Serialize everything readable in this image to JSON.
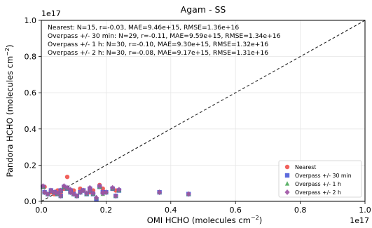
{
  "chart_data": {
    "type": "scatter",
    "title": "Agam - SS",
    "xlabel": "OMI HCHO (molecules cm",
    "xlabel_sup": "−2",
    "xlabel_end": ")",
    "ylabel": "Pandora HCHO (molecules cm",
    "ylabel_sup": "−2",
    "ylabel_end": ")",
    "x_offset_text": "1e17",
    "y_offset_text": "1e17",
    "xlim": [
      0.0,
      1.0
    ],
    "ylim": [
      0.0,
      1.0
    ],
    "x_ticks": [
      "0.0",
      "0.2",
      "0.4",
      "0.6",
      "0.8",
      "1.0"
    ],
    "y_ticks": [
      "0.0",
      "0.2",
      "0.4",
      "0.6",
      "0.8",
      "1.0"
    ],
    "grid": true,
    "one_to_one_line": true,
    "stats": [
      "Nearest: N=15, r=-0.03, MAE=9.46e+15, RMSE=1.36e+16",
      "Overpass +/- 30 min: N=29, r=-0.11, MAE=9.59e+15, RMSE=1.34e+16",
      "Overpass +/- 1 h: N=30, r=-0.10, MAE=9.30e+15, RMSE=1.32e+16",
      "Overpass +/- 2 h: N=30, r=-0.08, MAE=9.17e+15, RMSE=1.31e+16"
    ],
    "legend_position": "bottom-right",
    "series": [
      {
        "name": "Nearest",
        "color": "#f0504a",
        "marker": "circle",
        "x": [
          0.01,
          0.05,
          0.07,
          0.08,
          0.12,
          0.15,
          0.18,
          0.22,
          0.04,
          0.1,
          0.03,
          0.16,
          0.19,
          0.06,
          0.23
        ],
        "y": [
          0.08,
          0.06,
          0.07,
          0.135,
          0.07,
          0.05,
          0.09,
          0.07,
          0.04,
          0.06,
          0.05,
          0.06,
          0.07,
          0.05,
          0.06
        ]
      },
      {
        "name": "Overpass +/- 30 min",
        "color": "#4a5ad8",
        "marker": "square",
        "x": [
          0.005,
          0.01,
          0.03,
          0.05,
          0.06,
          0.07,
          0.09,
          0.1,
          0.12,
          0.14,
          0.15,
          0.17,
          0.18,
          0.19,
          0.22,
          0.23,
          0.24,
          0.02,
          0.04,
          0.08,
          0.11,
          0.13,
          0.16,
          0.2,
          0.06,
          0.09,
          0.15,
          0.365,
          0.455
        ],
        "y": [
          0.08,
          0.05,
          0.06,
          0.04,
          0.06,
          0.08,
          0.06,
          0.04,
          0.05,
          0.04,
          0.06,
          0.01,
          0.08,
          0.05,
          0.07,
          0.03,
          0.06,
          0.04,
          0.05,
          0.07,
          0.03,
          0.06,
          0.04,
          0.05,
          0.03,
          0.05,
          0.07,
          0.05,
          0.04
        ]
      },
      {
        "name": "Overpass +/- 1 h",
        "color": "#4caa5a",
        "marker": "triangle",
        "x": [
          0.005,
          0.01,
          0.03,
          0.05,
          0.06,
          0.07,
          0.09,
          0.1,
          0.12,
          0.14,
          0.15,
          0.17,
          0.18,
          0.19,
          0.22,
          0.23,
          0.24,
          0.02,
          0.04,
          0.08,
          0.11,
          0.13,
          0.16,
          0.2,
          0.06,
          0.09,
          0.15,
          0.365,
          0.455,
          0.19
        ],
        "y": [
          0.08,
          0.05,
          0.06,
          0.04,
          0.06,
          0.08,
          0.06,
          0.04,
          0.05,
          0.04,
          0.06,
          0.02,
          0.08,
          0.05,
          0.07,
          0.03,
          0.06,
          0.04,
          0.05,
          0.07,
          0.03,
          0.06,
          0.04,
          0.05,
          0.03,
          0.05,
          0.07,
          0.05,
          0.04,
          0.04
        ]
      },
      {
        "name": "Overpass +/- 2 h",
        "color": "#9e52a4",
        "marker": "diamond",
        "x": [
          0.005,
          0.01,
          0.03,
          0.05,
          0.06,
          0.07,
          0.09,
          0.1,
          0.12,
          0.14,
          0.15,
          0.17,
          0.18,
          0.19,
          0.22,
          0.23,
          0.24,
          0.02,
          0.04,
          0.08,
          0.11,
          0.13,
          0.16,
          0.2,
          0.06,
          0.09,
          0.15,
          0.365,
          0.455,
          0.19
        ],
        "y": [
          0.085,
          0.05,
          0.06,
          0.045,
          0.06,
          0.085,
          0.065,
          0.04,
          0.05,
          0.045,
          0.06,
          0.02,
          0.085,
          0.05,
          0.075,
          0.03,
          0.065,
          0.04,
          0.05,
          0.075,
          0.03,
          0.06,
          0.045,
          0.05,
          0.03,
          0.05,
          0.075,
          0.05,
          0.04,
          0.045
        ]
      }
    ]
  }
}
